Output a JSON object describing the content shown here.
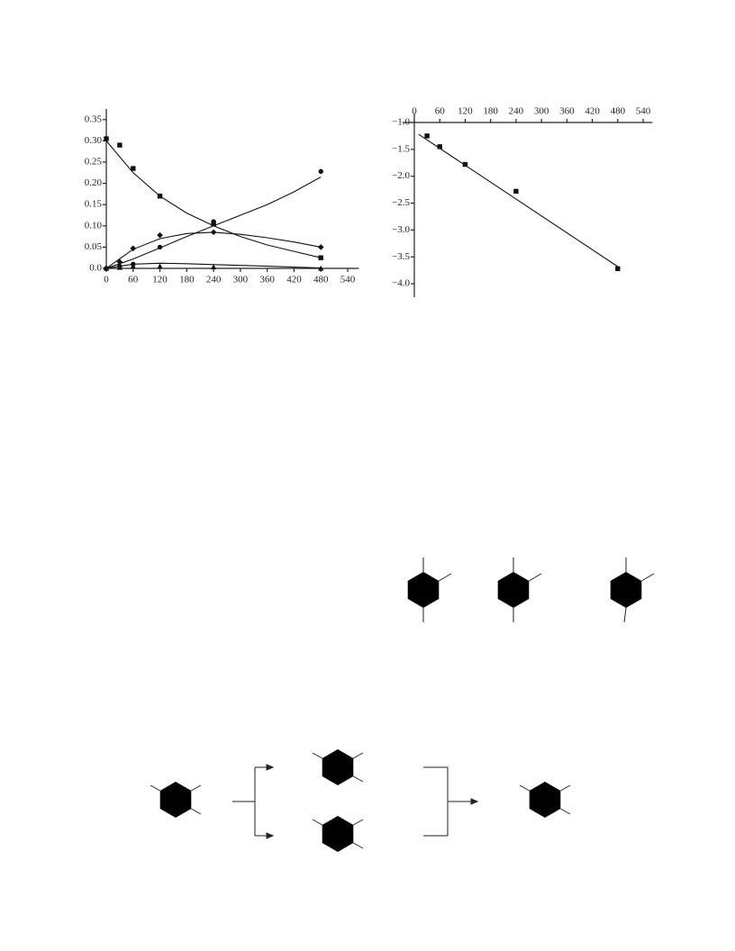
{
  "chart_data": [
    {
      "type": "scatter",
      "x_axis": "bottom",
      "xlim": [
        0,
        565
      ],
      "xticks": [
        0,
        60,
        120,
        180,
        240,
        300,
        360,
        420,
        480,
        540
      ],
      "ylim": [
        0,
        0.375
      ],
      "yticks": [
        {
          "value": 0,
          "label": "0.0"
        },
        0.05,
        {
          "value": 0.1,
          "label": "0.10"
        },
        0.15,
        {
          "value": 0.2,
          "label": "0.20"
        },
        0.25,
        {
          "value": 0.3,
          "label": "0.30"
        },
        0.35
      ],
      "x": [
        0,
        30,
        60,
        120,
        240,
        480
      ],
      "series": [
        {
          "marker": "square",
          "color": "#111",
          "values": [
            0.305,
            0.29,
            0.235,
            0.17,
            0.105,
            0.025
          ],
          "fit": {
            "x": [
              0,
              60,
              120,
              180,
              240,
              300,
              360,
              420,
              480
            ],
            "values": [
              0.3,
              0.225,
              0.17,
              0.13,
              0.1,
              0.075,
              0.055,
              0.04,
              0.025
            ]
          }
        },
        {
          "marker": "circle",
          "color": "#111",
          "values": [
            0,
            0.005,
            0.01,
            0.05,
            0.11,
            0.228
          ],
          "fit": {
            "x": [
              0,
              60,
              120,
              180,
              240,
              300,
              360,
              420,
              480
            ],
            "values": [
              0,
              0.022,
              0.048,
              0.075,
              0.1,
              0.125,
              0.15,
              0.18,
              0.215
            ]
          }
        },
        {
          "marker": "diamond",
          "color": "#111",
          "values": [
            0,
            0.015,
            0.047,
            0.078,
            0.085,
            0.05
          ],
          "fit": {
            "x": [
              0,
              60,
              120,
              180,
              240,
              300,
              360,
              420,
              480
            ],
            "values": [
              0,
              0.045,
              0.07,
              0.082,
              0.085,
              0.08,
              0.072,
              0.062,
              0.05
            ]
          }
        },
        {
          "marker": "triangle",
          "color": "#111",
          "values": [
            0,
            0.002,
            0.005,
            0.005,
            0.003,
            0
          ],
          "fit": {
            "x": [
              0,
              60,
              120,
              180,
              240,
              300,
              360,
              420,
              480
            ],
            "values": [
              0,
              0.01,
              0.012,
              0.011,
              0.009,
              0.007,
              0.005,
              0.003,
              0.001
            ]
          }
        }
      ]
    },
    {
      "type": "scatter",
      "x_axis": "top",
      "xlim": [
        -28,
        562
      ],
      "xticks": [
        0,
        60,
        120,
        180,
        240,
        300,
        360,
        420,
        480,
        540
      ],
      "ylim": [
        -4.25,
        -1.0
      ],
      "yticks": [
        {
          "value": -1.0,
          "label": "−1.0"
        },
        {
          "value": -1.5,
          "label": "−1.5"
        },
        {
          "value": -2.0,
          "label": "−2.0"
        },
        {
          "value": -2.5,
          "label": "−2.5"
        },
        {
          "value": -3.0,
          "label": "−3.0"
        },
        {
          "value": -3.5,
          "label": "−3.5"
        },
        {
          "value": -4.0,
          "label": "−4.0"
        }
      ],
      "x": [
        30,
        60,
        120,
        240,
        480
      ],
      "series": [
        {
          "marker": "square",
          "color": "#111",
          "values": [
            -1.25,
            -1.45,
            -1.78,
            -2.28,
            -3.72
          ],
          "fit": {
            "x": [
              10,
              480
            ],
            "values": [
              -1.22,
              -3.68
            ]
          }
        }
      ]
    }
  ]
}
